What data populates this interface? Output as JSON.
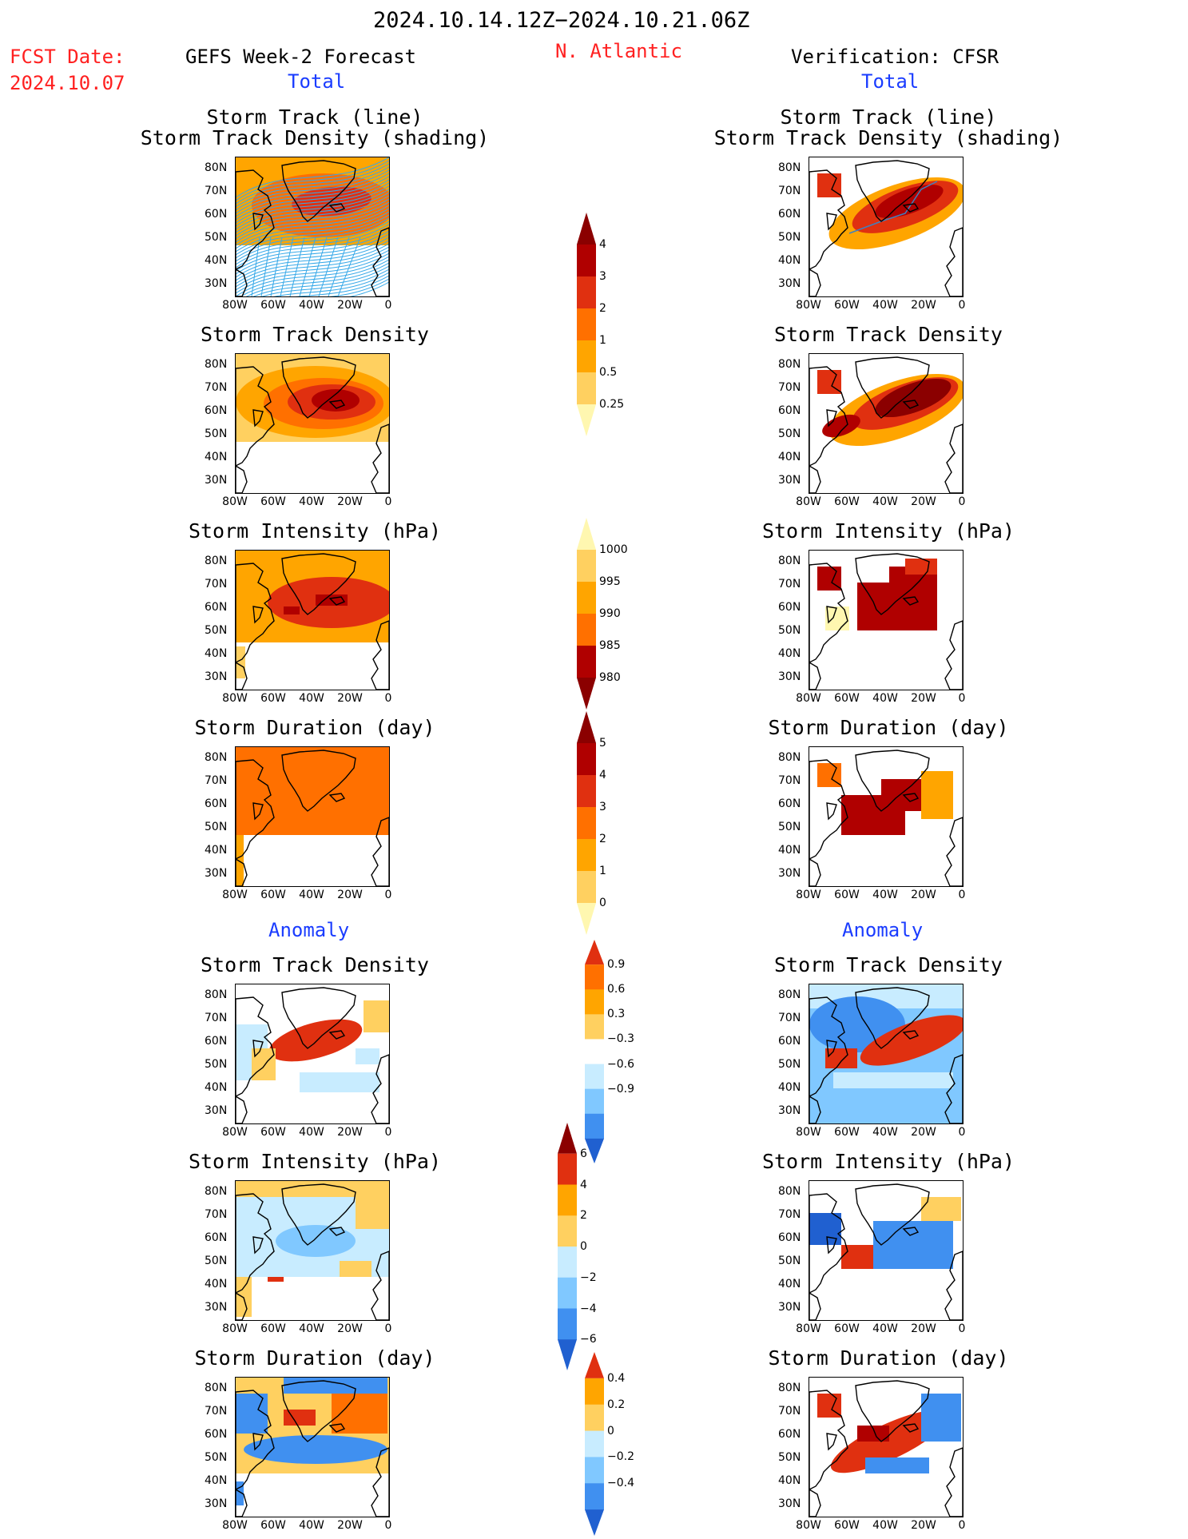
{
  "header": {
    "date_range": "2024.10.14.12Z−2024.10.21.06Z",
    "fcst_label": "FCST Date:",
    "fcst_date": "2024.10.07",
    "left_title": "GEFS Week-2 Forecast",
    "region": "N. Atlantic",
    "right_title": "Verification: CFSR",
    "total_left": "Total",
    "total_right": "Total",
    "anomaly_left": "Anomaly",
    "anomaly_right": "Anomaly"
  },
  "panel_titles": {
    "track_line": "Storm Track (line)",
    "track_density_shading": "Storm Track Density (shading)",
    "track_density": "Storm Track Density",
    "intensity": "Storm Intensity (hPa)",
    "duration": "Storm Duration (day)"
  },
  "axes": {
    "y_ticks": [
      "80N",
      "70N",
      "60N",
      "50N",
      "40N",
      "30N"
    ],
    "x_ticks": [
      "80W",
      "60W",
      "40W",
      "20W",
      "0"
    ]
  },
  "colorbars": {
    "density": [
      "4",
      "3",
      "2",
      "1",
      "0.5",
      "0.25"
    ],
    "intensity": [
      "1000",
      "995",
      "990",
      "985",
      "980"
    ],
    "duration": [
      "5",
      "4",
      "3",
      "2",
      "1",
      "0"
    ],
    "density_anom": [
      "0.9",
      "0.6",
      "0.3",
      "−0.3",
      "−0.6",
      "−0.9"
    ],
    "intensity_anom": [
      "6",
      "4",
      "2",
      "0",
      "−2",
      "−4",
      "−6"
    ],
    "duration_anom": [
      "0.4",
      "0.2",
      "0",
      "−0.2",
      "−0.4"
    ]
  },
  "colors": {
    "title_red": "#ff2020",
    "title_blue": "#1a3cff",
    "warm": [
      "#fff7b0",
      "#ffd060",
      "#ffa500",
      "#ff7000",
      "#e03010",
      "#b00000",
      "#8b0000"
    ],
    "cool": [
      "#c8ecff",
      "#80c8ff",
      "#4090f0",
      "#2060d0"
    ]
  }
}
